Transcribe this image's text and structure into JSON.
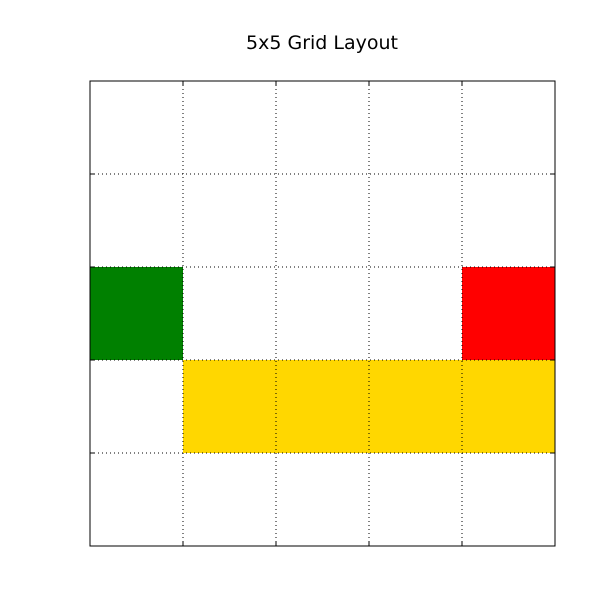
{
  "chart_data": {
    "type": "heatmap",
    "title": "5x5 Grid Layout",
    "xlabel": "",
    "ylabel": "",
    "rows": 5,
    "cols": 5,
    "grid": true,
    "grid_style": "dotted",
    "tick_labels": false,
    "colored_cells": [
      {
        "row": 2,
        "col": 0,
        "color": "#008000"
      },
      {
        "row": 2,
        "col": 4,
        "color": "#ff0000"
      },
      {
        "row": 3,
        "col": 1,
        "color": "#ffd700"
      },
      {
        "row": 3,
        "col": 2,
        "color": "#ffd700"
      },
      {
        "row": 3,
        "col": 3,
        "color": "#ffd700"
      },
      {
        "row": 3,
        "col": 4,
        "color": "#ffd700"
      }
    ],
    "colors": {
      "background": "#ffffff",
      "grid": "#000000",
      "frame": "#000000"
    }
  }
}
